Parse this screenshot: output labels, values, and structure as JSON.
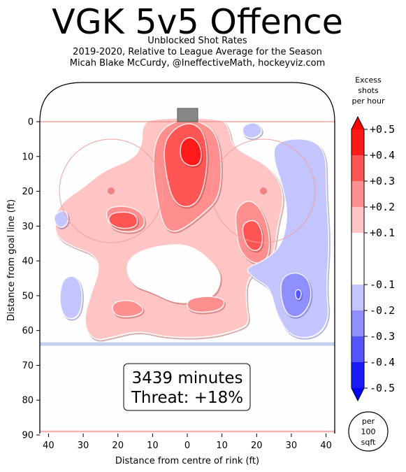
{
  "header": {
    "title": "VGK 5v5 Offence",
    "subtitle_lines": [
      "Unblocked Shot Rates",
      "2019-2020, Relative to League Average for the Season",
      "Micah Blake McCurdy, @IneffectiveMath, hockeyviz.com"
    ]
  },
  "annotation": {
    "minutes": "3439 minutes",
    "threat": "Threat: +18%"
  },
  "colorbar": {
    "title_lines": [
      "Excess",
      "shots",
      "per hour"
    ],
    "ticks": [
      "+0.5",
      "+0.4",
      "+0.3",
      "+0.2",
      "+0.1",
      "-0.1",
      "-0.2",
      "-0.3",
      "-0.4",
      "-0.5"
    ],
    "colors": {
      "0.45": "#ff1a1a",
      "0.35": "#ff5555",
      "0.25": "#ff8f8f",
      "0.15": "#ffc4c4",
      "0.0": "#fefefe",
      "-0.15": "#c4c4ff",
      "-0.25": "#8f8fff",
      "-0.35": "#5555ff",
      "-0.45": "#1a1aff"
    },
    "unit_lines": [
      "per",
      "100",
      "sqft"
    ]
  },
  "chart_data": {
    "type": "heatmap",
    "title": "VGK 5v5 Offence",
    "xlabel": "Distance from centre of rink (ft)",
    "ylabel": "Distance from goal line (ft)",
    "x_ticks": [
      "40",
      "30",
      "20",
      "10",
      "0",
      "10",
      "20",
      "30",
      "40"
    ],
    "x_tick_values": [
      -40,
      -30,
      -20,
      -10,
      0,
      10,
      20,
      30,
      40
    ],
    "y_ticks": [
      "0",
      "10",
      "20",
      "30",
      "40",
      "50",
      "60",
      "70",
      "80",
      "90"
    ],
    "y_tick_values": [
      0,
      10,
      20,
      30,
      40,
      50,
      60,
      70,
      80,
      90
    ],
    "xlim": [
      -42.5,
      42.5
    ],
    "ylim": [
      -11,
      90
    ],
    "value_range": [
      -0.5,
      0.5
    ],
    "regions": [
      {
        "level": 0.15,
        "points": [
          [
            -38,
            27
          ],
          [
            -36,
            23
          ],
          [
            -30,
            19
          ],
          [
            -24,
            14
          ],
          [
            -16,
            11
          ],
          [
            -13,
            7
          ],
          [
            -13,
            1
          ],
          [
            -10,
            -1
          ],
          [
            10,
            -1
          ],
          [
            12,
            2
          ],
          [
            13,
            7
          ],
          [
            18,
            10
          ],
          [
            22,
            12
          ],
          [
            26,
            16
          ],
          [
            28,
            22
          ],
          [
            26,
            30
          ],
          [
            25,
            38
          ],
          [
            22,
            42
          ],
          [
            17,
            45
          ],
          [
            17,
            53
          ],
          [
            18,
            58
          ],
          [
            14,
            60
          ],
          [
            6,
            62
          ],
          [
            -6,
            62
          ],
          [
            -14,
            60
          ],
          [
            -22,
            62
          ],
          [
            -27,
            63
          ],
          [
            -30,
            58
          ],
          [
            -28,
            50
          ],
          [
            -25,
            42
          ],
          [
            -27,
            38
          ],
          [
            -33,
            36
          ],
          [
            -38,
            33
          ]
        ]
      },
      {
        "level": 0.0,
        "points": [
          [
            -18,
            41
          ],
          [
            -14,
            37
          ],
          [
            -4,
            35
          ],
          [
            2,
            36
          ],
          [
            8,
            41
          ],
          [
            10,
            45
          ],
          [
            8,
            50
          ],
          [
            2,
            52
          ],
          [
            -4,
            52
          ],
          [
            -10,
            49
          ],
          [
            -16,
            47
          ]
        ]
      },
      {
        "level": 0.25,
        "points": [
          [
            -24,
            25
          ],
          [
            -18,
            24
          ],
          [
            -13,
            26
          ],
          [
            -12,
            30
          ],
          [
            -16,
            32
          ],
          [
            -22,
            31
          ]
        ]
      },
      {
        "level": 0.25,
        "points": [
          [
            -9,
            5
          ],
          [
            -6,
            1
          ],
          [
            0,
            -1
          ],
          [
            6,
            1
          ],
          [
            9,
            5
          ],
          [
            10,
            14
          ],
          [
            9,
            22
          ],
          [
            5,
            26
          ],
          [
            0,
            30
          ],
          [
            -4,
            32
          ],
          [
            -7,
            30
          ],
          [
            -9,
            20
          ],
          [
            -10,
            12
          ]
        ]
      },
      {
        "level": 0.25,
        "points": [
          [
            14,
            25
          ],
          [
            18,
            22
          ],
          [
            22,
            26
          ],
          [
            24,
            34
          ],
          [
            23,
            40
          ],
          [
            19,
            41
          ],
          [
            15,
            37
          ],
          [
            14,
            30
          ]
        ]
      },
      {
        "level": 0.25,
        "points": [
          [
            -22,
            52
          ],
          [
            -16,
            51
          ],
          [
            -12,
            54
          ],
          [
            -15,
            56
          ],
          [
            -21,
            56
          ]
        ]
      },
      {
        "level": 0.25,
        "points": [
          [
            0,
            51
          ],
          [
            6,
            50
          ],
          [
            11,
            51
          ],
          [
            10,
            54
          ],
          [
            4,
            55
          ],
          [
            0,
            54
          ]
        ]
      },
      {
        "level": 0.35,
        "points": [
          [
            -22,
            26
          ],
          [
            -15,
            26
          ],
          [
            -14,
            30
          ],
          [
            -19,
            31
          ],
          [
            -23,
            29
          ]
        ]
      },
      {
        "level": 0.35,
        "points": [
          [
            -7,
            7
          ],
          [
            -4,
            2
          ],
          [
            1,
            0
          ],
          [
            5,
            3
          ],
          [
            6,
            12
          ],
          [
            4,
            22
          ],
          [
            0,
            25
          ],
          [
            -4,
            23
          ],
          [
            -6,
            16
          ]
        ]
      },
      {
        "level": 0.35,
        "points": [
          [
            16,
            29
          ],
          [
            20,
            28
          ],
          [
            22,
            33
          ],
          [
            21,
            37
          ],
          [
            18,
            37
          ],
          [
            16,
            33
          ]
        ]
      },
      {
        "level": 0.45,
        "points": [
          [
            -2,
            6
          ],
          [
            1,
            4
          ],
          [
            4,
            7
          ],
          [
            4,
            12
          ],
          [
            1,
            13
          ],
          [
            -2,
            11
          ]
        ]
      },
      {
        "level": -0.15,
        "points": [
          [
            24,
            8
          ],
          [
            28,
            5
          ],
          [
            36,
            5
          ],
          [
            40,
            9
          ],
          [
            40,
            20
          ],
          [
            41,
            35
          ],
          [
            40,
            48
          ],
          [
            41,
            57
          ],
          [
            37,
            62
          ],
          [
            30,
            62
          ],
          [
            26,
            56
          ],
          [
            24,
            48
          ],
          [
            21,
            46
          ],
          [
            18,
            44
          ],
          [
            17,
            42
          ],
          [
            22,
            40
          ],
          [
            27,
            36
          ],
          [
            29,
            28
          ],
          [
            28,
            20
          ]
        ]
      },
      {
        "level": -0.15,
        "points": [
          [
            16,
            1
          ],
          [
            20,
            0
          ],
          [
            22,
            3
          ],
          [
            19,
            5
          ],
          [
            16,
            4
          ]
        ]
      },
      {
        "level": -0.15,
        "points": [
          [
            -36,
            45
          ],
          [
            -32,
            44
          ],
          [
            -30,
            49
          ],
          [
            -31,
            56
          ],
          [
            -35,
            57
          ],
          [
            -37,
            52
          ]
        ]
      },
      {
        "level": -0.15,
        "points": [
          [
            -39,
            27
          ],
          [
            -35,
            25
          ],
          [
            -34,
            29
          ],
          [
            -37,
            31
          ]
        ]
      },
      {
        "level": -0.25,
        "points": [
          [
            27,
            45
          ],
          [
            31,
            43
          ],
          [
            35,
            45
          ],
          [
            36,
            51
          ],
          [
            33,
            56
          ],
          [
            29,
            56
          ],
          [
            27,
            51
          ]
        ]
      },
      {
        "level": -0.35,
        "points": [
          [
            31,
            49
          ],
          [
            32,
            48
          ],
          [
            33,
            49
          ],
          [
            32.5,
            51
          ],
          [
            31.5,
            51
          ]
        ]
      }
    ]
  }
}
